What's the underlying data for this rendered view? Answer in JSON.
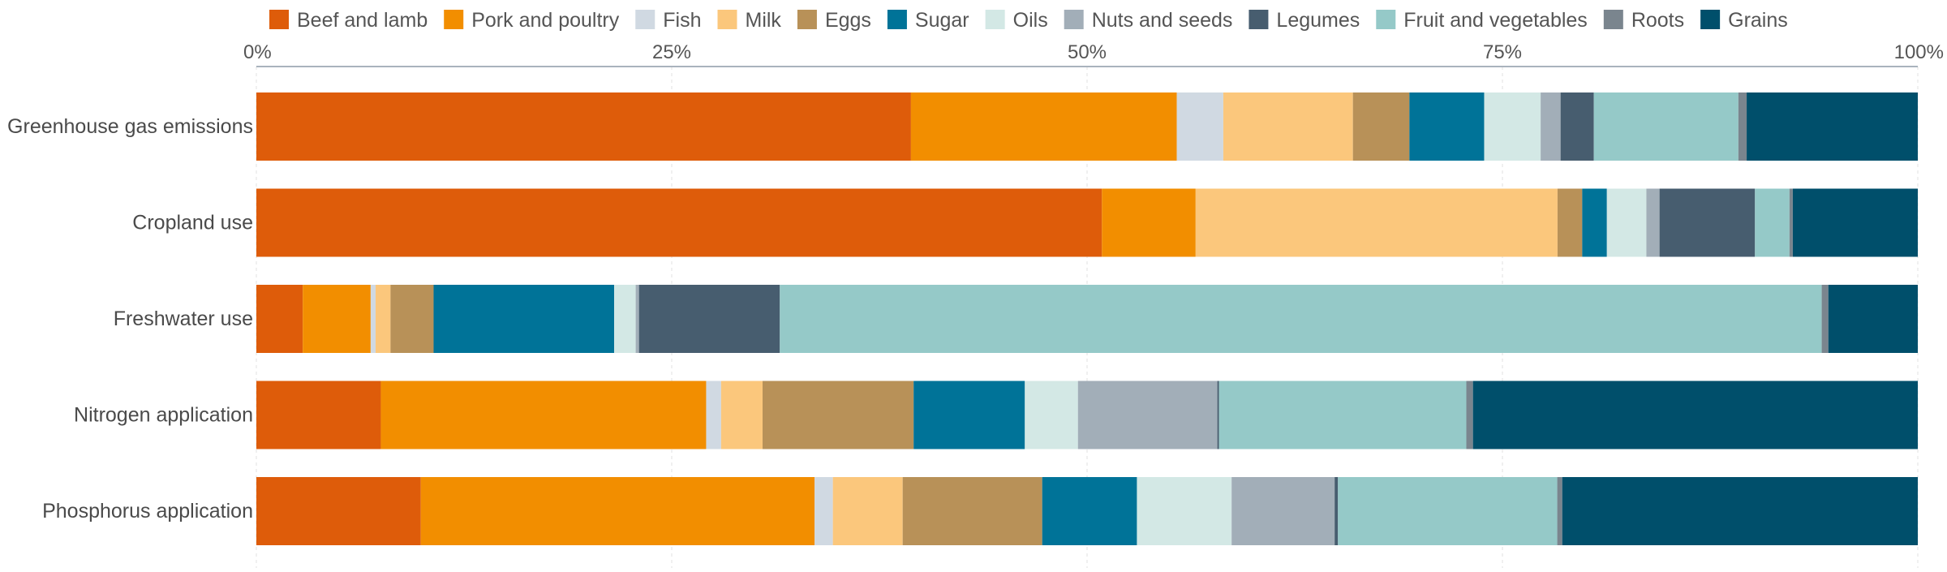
{
  "chart_data": {
    "type": "bar",
    "orientation": "horizontal",
    "stacked": true,
    "percent": true,
    "title": "",
    "xlabel": "",
    "ylabel": "",
    "xlim": [
      0,
      100
    ],
    "x_ticks": [
      "0%",
      "25%",
      "50%",
      "75%",
      "100%"
    ],
    "x_tick_values": [
      0,
      25,
      50,
      75,
      100
    ],
    "grid": true,
    "legend_position": "top",
    "categories": [
      "Greenhouse gas emissions",
      "Cropland use",
      "Freshwater use",
      "Nitrogen application",
      "Phosphorus application"
    ],
    "series": [
      {
        "name": "Beef and lamb",
        "color": "#de5c0a",
        "values": [
          39.4,
          51.4,
          2.8,
          7.5,
          9.9
        ]
      },
      {
        "name": "Pork and poultry",
        "color": "#f28e00",
        "values": [
          16.0,
          5.7,
          4.1,
          19.6,
          23.7
        ]
      },
      {
        "name": "Fish",
        "color": "#d0d9e2",
        "values": [
          2.8,
          0.0,
          0.3,
          0.9,
          1.1
        ]
      },
      {
        "name": "Milk",
        "color": "#fbc77c",
        "values": [
          7.8,
          22.0,
          0.9,
          2.5,
          4.2
        ]
      },
      {
        "name": "Eggs",
        "color": "#b89158",
        "values": [
          3.4,
          1.5,
          2.6,
          9.1,
          8.4
        ]
      },
      {
        "name": "Sugar",
        "color": "#007398",
        "values": [
          4.5,
          1.5,
          10.9,
          6.7,
          5.7
        ]
      },
      {
        "name": "Oils",
        "color": "#d3e8e5",
        "values": [
          3.4,
          2.4,
          1.3,
          3.2,
          5.7
        ]
      },
      {
        "name": "Nuts and seeds",
        "color": "#a2aeb8",
        "values": [
          1.2,
          0.8,
          0.2,
          8.4,
          6.2
        ]
      },
      {
        "name": "Legumes",
        "color": "#475d6f",
        "values": [
          2.0,
          5.8,
          8.5,
          0.1,
          0.2
        ]
      },
      {
        "name": "Fruit and vegetables",
        "color": "#95c9c8",
        "values": [
          8.7,
          2.1,
          62.9,
          14.9,
          13.2
        ]
      },
      {
        "name": "Roots",
        "color": "#7a858e",
        "values": [
          0.5,
          0.2,
          0.4,
          0.4,
          0.3
        ]
      },
      {
        "name": "Grains",
        "color": "#004f6b",
        "values": [
          10.3,
          7.6,
          5.4,
          26.8,
          21.4
        ]
      }
    ]
  }
}
